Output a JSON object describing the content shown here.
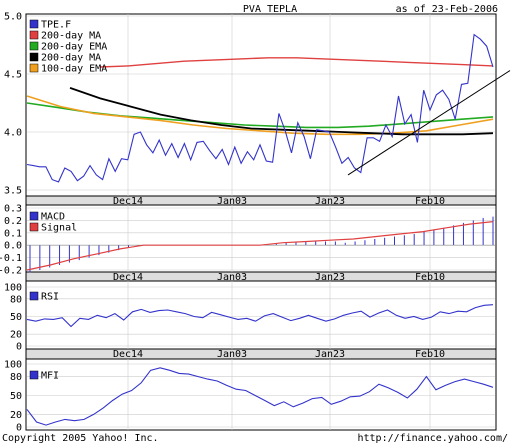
{
  "header": {
    "title": "PVA TEPLA",
    "as_of": "as of 23-Feb-2006"
  },
  "footer": {
    "copyright": "Copyright 2005 Yahoo! Inc.",
    "url": "http://finance.yahoo.com/"
  },
  "colors": {
    "price": "#3333cc",
    "ma200": "#e04040",
    "ema200": "#22aa22",
    "ma100": "#000000",
    "ema100": "#f0a020",
    "macd": "#3333cc",
    "signal": "#e04040",
    "grid": "#cccccc",
    "band": "#dddddd"
  },
  "chart_data": [
    {
      "type": "line",
      "panel": "price",
      "x_labels": [
        "Dec14",
        "Jan03",
        "Jan23",
        "Feb10"
      ],
      "ylim": [
        3.5,
        5.0
      ],
      "y_ticks": [
        "3.5",
        "4.0",
        "4.5",
        "5.0"
      ],
      "legend": [
        "TPE.F",
        "200-day MA",
        "200-day EMA",
        "200-day MA",
        "100-day EMA"
      ],
      "grid": true,
      "series": [
        {
          "name": "TPE.F",
          "values": [
            3.72,
            3.71,
            3.7,
            3.7,
            3.59,
            3.57,
            3.69,
            3.66,
            3.58,
            3.62,
            3.71,
            3.63,
            3.59,
            3.77,
            3.66,
            3.77,
            3.76,
            3.98,
            4.0,
            3.89,
            3.82,
            3.93,
            3.8,
            3.9,
            3.78,
            3.9,
            3.76,
            3.91,
            3.92,
            3.84,
            3.77,
            3.85,
            3.72,
            3.87,
            3.73,
            3.83,
            3.76,
            3.89,
            3.75,
            3.74,
            4.16,
            4.01,
            3.82,
            4.08,
            3.96,
            3.77,
            4.02,
            4.01,
            4.0,
            3.87,
            3.73,
            3.78,
            3.69,
            3.65,
            3.95,
            3.95,
            3.92,
            4.06,
            3.96,
            4.31,
            4.07,
            4.15,
            3.91,
            4.36,
            4.19,
            4.32,
            4.36,
            4.28,
            4.11,
            4.41,
            4.42,
            4.84,
            4.8,
            4.74,
            4.56
          ]
        },
        {
          "name": "200-day MA",
          "values": [
            4.56,
            4.57,
            4.59,
            4.61,
            4.62,
            4.63,
            4.64,
            4.64,
            4.63,
            4.62,
            4.61,
            4.6,
            4.59,
            4.58,
            4.57
          ]
        },
        {
          "name": "200-day EMA",
          "values": [
            4.25,
            4.21,
            4.17,
            4.14,
            4.12,
            4.1,
            4.08,
            4.06,
            4.05,
            4.04,
            4.04,
            4.05,
            4.07,
            4.09,
            4.11,
            4.13
          ]
        },
        {
          "name": "200-day MA",
          "values": [
            4.38,
            4.29,
            4.22,
            4.15,
            4.1,
            4.06,
            4.03,
            4.02,
            4.01,
            4.0,
            3.99,
            3.98,
            3.98,
            3.98,
            3.99
          ]
        },
        {
          "name": "100-day EMA",
          "values": [
            4.31,
            4.22,
            4.16,
            4.13,
            4.1,
            4.06,
            4.03,
            4.01,
            3.99,
            3.98,
            3.98,
            3.99,
            4.01,
            4.06,
            4.11
          ]
        }
      ],
      "annotations": [
        "trendline from Jan23 low (3.65) up to 4.55 at right edge"
      ]
    },
    {
      "type": "bar",
      "panel": "macd",
      "ylim": [
        -0.2,
        0.3
      ],
      "y_ticks": [
        "0.3",
        "0.2",
        "0.1",
        "0.0",
        "-0.1",
        "-0.2"
      ],
      "legend": [
        "MACD",
        "Signal"
      ],
      "series": [
        {
          "name": "MACD",
          "values": [
            -0.22,
            -0.2,
            -0.18,
            -0.16,
            -0.14,
            -0.12,
            -0.1,
            -0.08,
            -0.06,
            -0.04,
            -0.02,
            -0.01,
            0.0,
            0.0,
            0.0,
            0.0,
            0.0,
            0.0,
            0.0,
            0.0,
            0.0,
            0.0,
            0.0,
            0.0,
            0.0,
            0.01,
            0.02,
            0.03,
            0.03,
            0.03,
            0.03,
            0.03,
            0.02,
            0.03,
            0.04,
            0.05,
            0.06,
            0.07,
            0.08,
            0.09,
            0.11,
            0.12,
            0.14,
            0.16,
            0.18,
            0.2,
            0.22,
            0.23
          ]
        },
        {
          "name": "Signal",
          "values": [
            -0.2,
            -0.16,
            -0.11,
            -0.07,
            -0.03,
            0.0,
            0.0,
            0.0,
            0.0,
            0.0,
            0.0,
            0.02,
            0.03,
            0.04,
            0.05,
            0.07,
            0.09,
            0.11,
            0.14,
            0.17,
            0.19
          ]
        }
      ]
    },
    {
      "type": "line",
      "panel": "rsi",
      "ylim": [
        0,
        100
      ],
      "y_ticks": [
        "100",
        "80",
        "50",
        "20",
        "0"
      ],
      "legend": [
        "RSI"
      ],
      "series": [
        {
          "name": "RSI",
          "values": [
            45,
            42,
            46,
            45,
            48,
            33,
            47,
            45,
            52,
            48,
            55,
            44,
            58,
            62,
            57,
            60,
            61,
            58,
            55,
            50,
            48,
            57,
            53,
            49,
            45,
            47,
            42,
            51,
            55,
            49,
            43,
            47,
            52,
            47,
            42,
            46,
            52,
            56,
            59,
            49,
            56,
            61,
            52,
            47,
            50,
            45,
            49,
            58,
            55,
            59,
            58,
            65,
            69,
            70
          ]
        }
      ]
    },
    {
      "type": "line",
      "panel": "mfi",
      "ylim": [
        0,
        100
      ],
      "y_ticks": [
        "100",
        "80",
        "50",
        "20",
        "0"
      ],
      "legend": [
        "MFI"
      ],
      "series": [
        {
          "name": "MFI",
          "values": [
            28,
            8,
            3,
            8,
            12,
            10,
            12,
            20,
            30,
            42,
            52,
            58,
            70,
            90,
            94,
            90,
            85,
            84,
            80,
            76,
            73,
            66,
            60,
            58,
            50,
            42,
            34,
            40,
            32,
            38,
            45,
            47,
            36,
            41,
            48,
            49,
            56,
            68,
            62,
            55,
            46,
            60,
            80,
            59,
            66,
            72,
            76,
            72,
            68,
            63
          ]
        }
      ]
    }
  ]
}
